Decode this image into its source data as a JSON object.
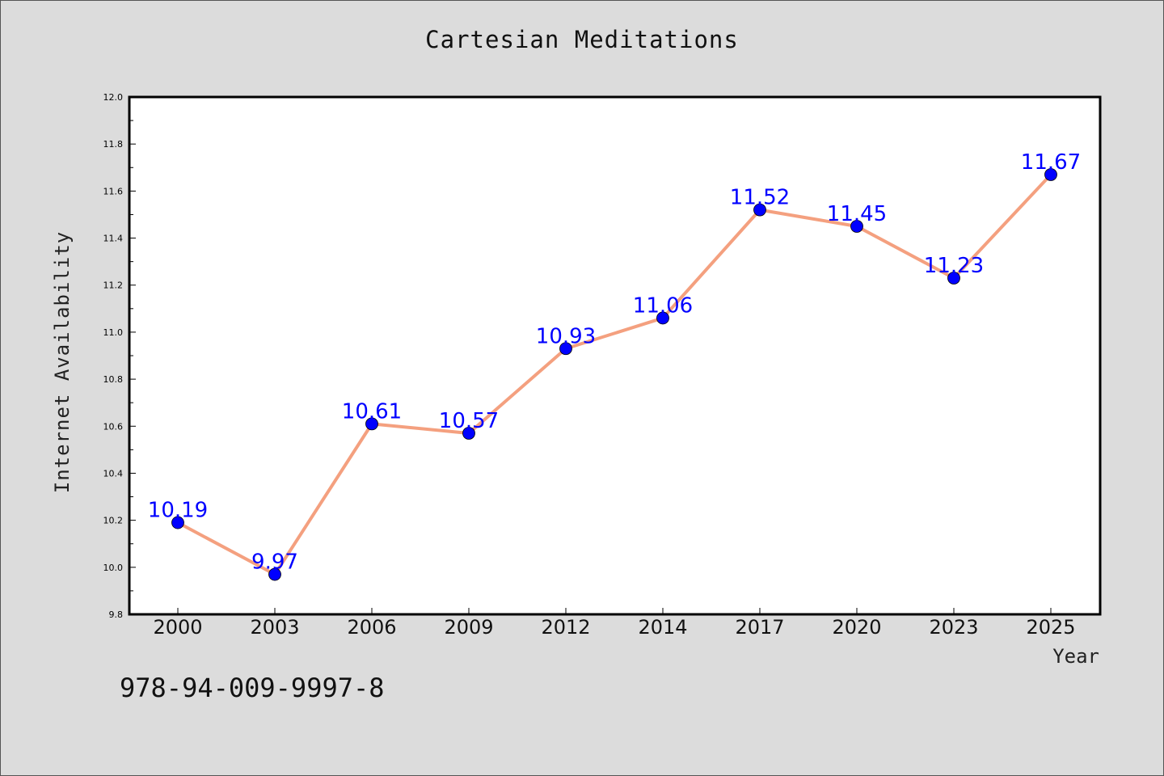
{
  "title": "Cartesian Meditations",
  "footer_text": "978-94-009-9997-8",
  "colors": {
    "background": "#dcdcdc",
    "plot_background": "#ffffff",
    "line": "#f4a07f",
    "marker": "#0000ff",
    "label": "#0000ff"
  },
  "chart_data": {
    "type": "line",
    "title": "Cartesian Meditations",
    "xlabel": "Year",
    "ylabel": "Internet Availability",
    "categories": [
      "2000",
      "2003",
      "2006",
      "2009",
      "2012",
      "2014",
      "2017",
      "2020",
      "2023",
      "2025"
    ],
    "series": [
      {
        "values": [
          10.19,
          9.97,
          10.61,
          10.57,
          10.93,
          11.06,
          11.52,
          11.45,
          11.23,
          11.67
        ],
        "labels": [
          "10.19",
          "9.97",
          "10.61",
          "10.57",
          "10.93",
          "11.06",
          "11.52",
          "11.45",
          "11.23",
          "11.67"
        ]
      }
    ],
    "ylim": [
      9.8,
      12.0
    ],
    "yticks": [
      "9.8",
      "10.0",
      "10.2",
      "10.4",
      "10.6",
      "10.8",
      "11.0",
      "11.2",
      "11.4",
      "11.6",
      "11.8",
      "12.0"
    ],
    "grid": false,
    "legend": "none"
  }
}
